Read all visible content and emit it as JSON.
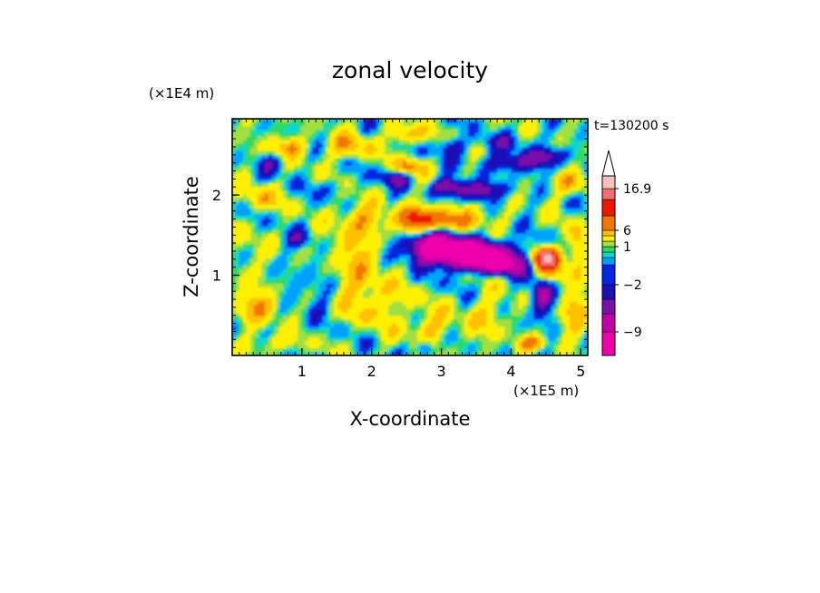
{
  "chart_data": {
    "type": "heatmap",
    "title": "zonal velocity",
    "xlabel": "X-coordinate",
    "ylabel": "Z-coordinate",
    "x_unit": "(×1E5 m)",
    "y_unit": "(×1E4 m)",
    "time_label": "t=130200 s",
    "x_range": [
      0,
      5.1
    ],
    "y_range": [
      0,
      2.95
    ],
    "x_ticks": [
      1,
      2,
      3,
      4,
      5
    ],
    "y_ticks": [
      1,
      2
    ],
    "colorbar": {
      "levels": [
        {
          "value": -12,
          "color": "#ee00aa"
        },
        {
          "value": -9,
          "color": "#c000a8"
        },
        {
          "value": -6,
          "color": "#7a10a8"
        },
        {
          "value": -4,
          "color": "#1a10b4"
        },
        {
          "value": -2,
          "color": "#0026e0"
        },
        {
          "value": -1,
          "color": "#00a0ff"
        },
        {
          "value": 0,
          "color": "#10d8d0"
        },
        {
          "value": 0.5,
          "color": "#30d860"
        },
        {
          "value": 1,
          "color": "#a0e040"
        },
        {
          "value": 2,
          "color": "#fff000"
        },
        {
          "value": 4,
          "color": "#ffc000"
        },
        {
          "value": 6,
          "color": "#f07800"
        },
        {
          "value": 9,
          "color": "#ee1800"
        },
        {
          "value": 12,
          "color": "#f07070"
        },
        {
          "value": 16.9,
          "color": "#f8c0b8"
        }
      ],
      "labels": [
        {
          "value": 16.9,
          "text": "16.9"
        },
        {
          "value": 6,
          "text": "6"
        },
        {
          "value": 1,
          "text": "1"
        },
        {
          "value": -2,
          "text": "−2"
        },
        {
          "value": -9,
          "text": "−9"
        }
      ],
      "max_extension": "triangle"
    },
    "features": [
      {
        "name": "strong-negative-jet",
        "x_center": 3.5,
        "z_center": 1.25,
        "value": -9
      },
      {
        "name": "positive-maximum",
        "x_center": 4.45,
        "z_center": 1.22,
        "value": 12
      },
      {
        "name": "negative-band-upper",
        "x_center": 3.9,
        "z_center": 2.2,
        "value": -4
      },
      {
        "name": "negative-band-top",
        "x_center": 4.5,
        "z_center": 2.5,
        "value": -3
      }
    ]
  }
}
